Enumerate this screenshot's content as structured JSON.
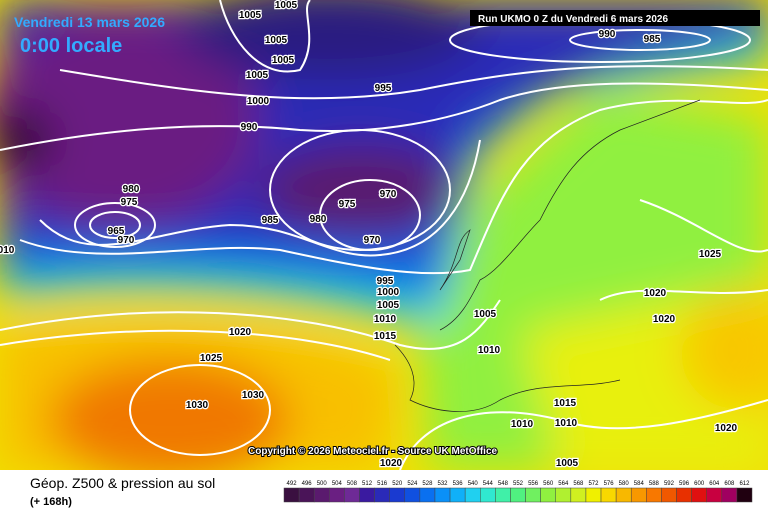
{
  "header": {
    "date": "Vendredi 13 mars 2026",
    "time": "0:00 locale",
    "run": "Run UKMO 0 Z du Vendredi 6 mars 2026"
  },
  "copyright": "Copyright © 2026 Meteociel.fr - Source UK MetOffice",
  "footer": {
    "title": "Géop. Z500 & pression au sol",
    "lead": "(+ 168h)"
  },
  "isobar_labels": [
    "1005",
    "1005",
    "1005",
    "1005",
    "1005",
    "1000",
    "995",
    "990",
    "985",
    "990",
    "980",
    "975",
    "965",
    "970",
    "985",
    "980",
    "975",
    "970",
    "970",
    "995",
    "1000",
    "1005",
    "1010",
    "1015",
    "1005",
    "1010",
    "1020",
    "1025",
    "1030",
    "1030",
    "1025",
    "1020",
    "1020",
    "1015",
    "1010",
    "1010",
    "1020",
    "1005",
    "1020",
    "010"
  ],
  "scale": {
    "values": [
      492,
      496,
      500,
      504,
      508,
      512,
      516,
      520,
      524,
      528,
      532,
      536,
      540,
      544,
      548,
      552,
      556,
      560,
      564,
      568,
      572,
      576,
      580,
      584,
      588,
      592,
      596,
      600,
      604,
      608,
      612
    ],
    "colors": [
      "#3a1040",
      "#4a1458",
      "#5a1a6e",
      "#6a1f82",
      "#6e2a96",
      "#3a1aa0",
      "#2a2ab8",
      "#1a3ad0",
      "#1050e0",
      "#0a70f0",
      "#0a90f8",
      "#10b0f8",
      "#20d0f0",
      "#30e8d0",
      "#40f0a8",
      "#50f080",
      "#70f060",
      "#90f040",
      "#b0f030",
      "#d0f020",
      "#f0f000",
      "#f8d800",
      "#f8b800",
      "#f89800",
      "#f87800",
      "#f05800",
      "#e83000",
      "#e01010",
      "#c80040",
      "#a00060",
      "#200010"
    ]
  }
}
